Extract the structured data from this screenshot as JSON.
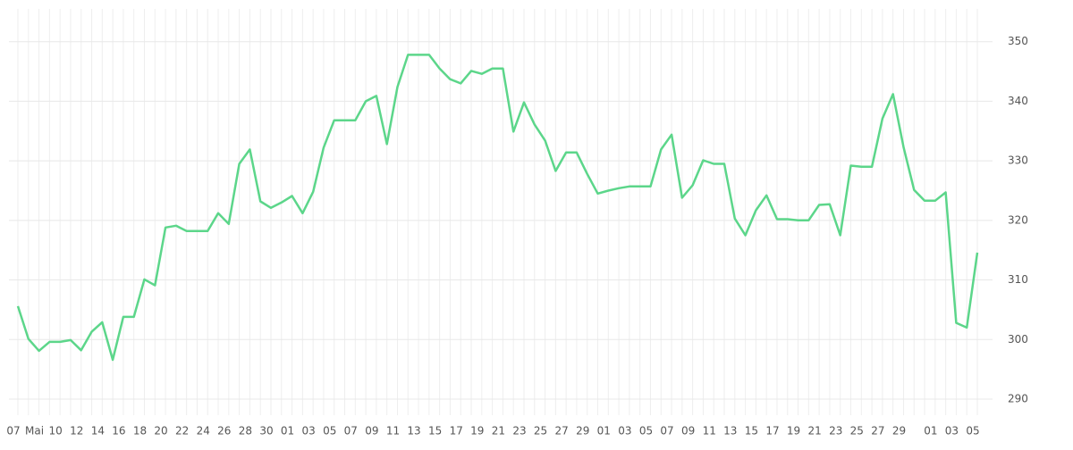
{
  "chart_data": {
    "type": "line",
    "categories": [
      "07",
      null,
      "Mai",
      null,
      "10",
      null,
      "12",
      null,
      "14",
      null,
      "16",
      null,
      "18",
      null,
      "20",
      null,
      "22",
      null,
      "24",
      null,
      "26",
      null,
      "28",
      null,
      "30",
      null,
      "01",
      null,
      "03",
      null,
      "05",
      null,
      "07",
      null,
      "09",
      null,
      "11",
      null,
      "13",
      null,
      "15",
      null,
      "17",
      null,
      "19",
      null,
      "21",
      null,
      "23",
      null,
      "25",
      null,
      "27",
      null,
      "29",
      null,
      "01",
      null,
      "03",
      null,
      "05",
      null,
      "07",
      null,
      "09",
      null,
      "11",
      null,
      "13",
      null,
      "15",
      null,
      "17",
      null,
      "19",
      null,
      "21",
      null,
      "23",
      null,
      "25",
      null,
      "27",
      null,
      "29",
      null,
      null,
      "01",
      null,
      "03",
      null,
      "05"
    ],
    "series": [
      {
        "color": "#5cd68a",
        "values": [
          305.6,
          300.1,
          298.1,
          299.6,
          299.6,
          299.9,
          298.2,
          301.3,
          302.9,
          296.6,
          303.8,
          303.8,
          310.1,
          309.1,
          318.8,
          319.1,
          318.2,
          318.2,
          318.2,
          321.2,
          319.4,
          329.5,
          331.9,
          323.2,
          322.1,
          323.0,
          324.1,
          321.2,
          324.8,
          332.2,
          336.8,
          336.8,
          336.8,
          340.0,
          340.9,
          332.8,
          342.4,
          347.8,
          347.8,
          347.8,
          345.5,
          343.7,
          343.0,
          345.1,
          344.6,
          345.5,
          345.5,
          334.9,
          339.8,
          336.1,
          333.4,
          328.3,
          331.4,
          331.4,
          327.8,
          324.5,
          325.0,
          325.4,
          325.7,
          325.7,
          325.7,
          331.9,
          334.4,
          323.8,
          325.9,
          330.1,
          329.5,
          329.5,
          320.3,
          317.5,
          321.7,
          324.2,
          320.2,
          320.2,
          320.0,
          320.0,
          322.6,
          322.7,
          317.5,
          329.2,
          329.0,
          329.0,
          337.1,
          341.2,
          332.3,
          325.1,
          323.3,
          323.3,
          324.7,
          302.8,
          302.0,
          314.6
        ]
      }
    ],
    "ylim": [
      287.3,
      355.5
    ],
    "yticks": [
      290,
      300,
      310,
      320,
      330,
      340,
      350
    ],
    "grid": true
  }
}
